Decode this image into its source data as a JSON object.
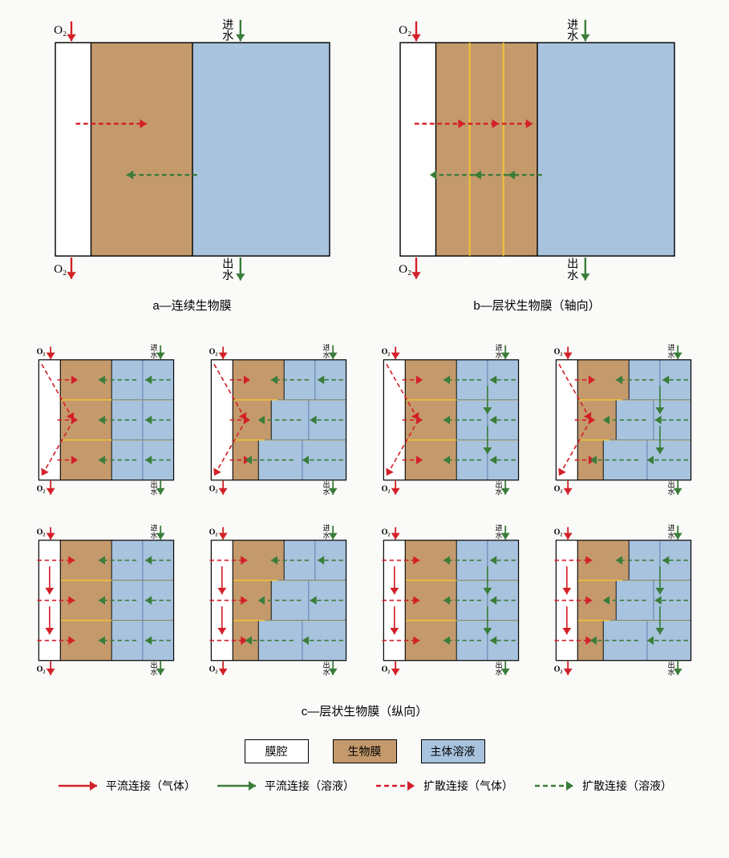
{
  "colors": {
    "cavity": "#ffffff",
    "biofilm": "#c49a6c",
    "bulk": "#a8c3de",
    "border": "#000000",
    "layer_line": "#f4c430",
    "gas_arrow": "#d32028",
    "liq_arrow": "#3a7d3a",
    "sublayer_line": "#5577aa"
  },
  "labels": {
    "o2": "O₂",
    "inflow": "进水",
    "outflow": "出水",
    "caption_a": "a—连续生物膜",
    "caption_b": "b—层状生物膜（轴向）",
    "caption_c": "c—层状生物膜（纵向）",
    "legend_cavity": "膜腔",
    "legend_biofilm": "生物膜",
    "legend_bulk": "主体溶液",
    "legend_adv_gas": "平流连接（气体）",
    "legend_adv_liq": "平流连接（溶液）",
    "legend_diff_gas": "扩散连接（气体）",
    "legend_diff_liq": "扩散连接（溶液）"
  },
  "panels": {
    "a": {
      "cavity_w": 0.13,
      "biofilm_w": 0.37,
      "bulk_w": 0.5,
      "axial_layers": 0
    },
    "b": {
      "cavity_w": 0.13,
      "biofilm_w": 0.37,
      "bulk_w": 0.5,
      "axial_layers": 3
    },
    "c_row1": [
      {
        "shape": "flat",
        "gas_pattern": "v",
        "liq_pattern": "h3",
        "bulk_v": false
      },
      {
        "shape": "step",
        "gas_pattern": "v",
        "liq_pattern": "h3",
        "bulk_v": false
      },
      {
        "shape": "flat",
        "gas_pattern": "v",
        "liq_pattern": "h3v",
        "bulk_v": true
      },
      {
        "shape": "step",
        "gas_pattern": "v",
        "liq_pattern": "h3v",
        "bulk_v": true
      }
    ],
    "c_row2": [
      {
        "shape": "flat",
        "gas_pattern": "hv",
        "liq_pattern": "h3",
        "bulk_v": false
      },
      {
        "shape": "step",
        "gas_pattern": "hv",
        "liq_pattern": "h3",
        "bulk_v": false
      },
      {
        "shape": "flat",
        "gas_pattern": "hv",
        "liq_pattern": "h3v",
        "bulk_v": true
      },
      {
        "shape": "step",
        "gas_pattern": "hv",
        "liq_pattern": "h3v",
        "bulk_v": true
      }
    ]
  },
  "style": {
    "border_width": 1.5,
    "arrow_width": 2.5,
    "arrow_width_small": 2,
    "dash": "6,4",
    "dash_small": "4,3",
    "font_size_large": 16,
    "font_size_small": 11
  }
}
